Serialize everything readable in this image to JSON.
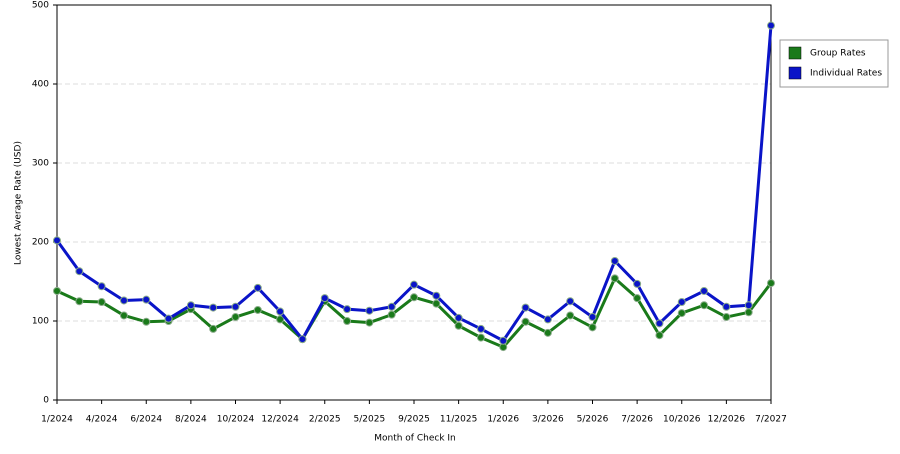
{
  "chart_data": {
    "type": "line",
    "x_label": "Month of Check In",
    "y_label": "Lowest Average Rate (USD)",
    "categories": [
      "1/2024",
      null,
      "4/2024",
      null,
      "6/2024",
      null,
      "8/2024",
      null,
      "10/2024",
      null,
      "12/2024",
      null,
      "2/2025",
      null,
      "5/2025",
      null,
      "9/2025",
      null,
      "11/2025",
      null,
      "1/2026",
      null,
      "3/2026",
      null,
      "5/2026",
      null,
      "7/2026",
      null,
      "10/2026",
      null,
      "12/2026",
      null,
      "7/2027"
    ],
    "series": [
      {
        "name": "Group Rates",
        "color": "#1a7a1a",
        "values": [
          138,
          125,
          124,
          107,
          99,
          100,
          115,
          90,
          105,
          114,
          102,
          77,
          125,
          100,
          98,
          108,
          130,
          122,
          94,
          79,
          67,
          99,
          85,
          107,
          92,
          154,
          129,
          82,
          110,
          120,
          105,
          111,
          148
        ]
      },
      {
        "name": "Individual Rates",
        "color": "#0a14c8",
        "values": [
          202,
          163,
          144,
          126,
          127,
          103,
          120,
          117,
          118,
          142,
          112,
          77,
          129,
          115,
          113,
          118,
          146,
          132,
          104,
          90,
          75,
          117,
          102,
          125,
          105,
          176,
          147,
          97,
          124,
          138,
          118,
          120,
          474
        ]
      }
    ],
    "ylim": [
      0,
      500
    ],
    "yticks": [
      0,
      100,
      200,
      300,
      400,
      500
    ],
    "grid": true,
    "legend": "right"
  }
}
